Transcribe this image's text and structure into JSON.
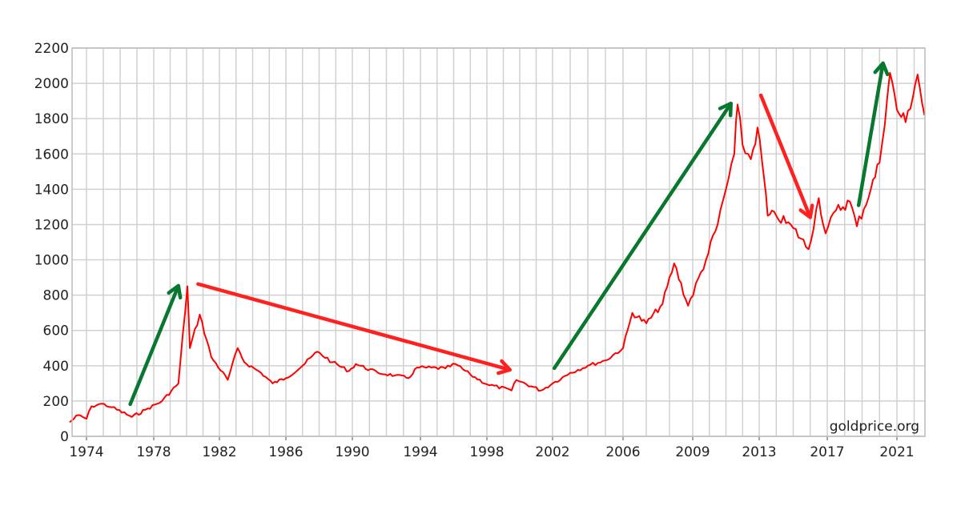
{
  "chart_data": {
    "type": "line",
    "title": "",
    "xlabel": "",
    "ylabel": "",
    "ylim": [
      0,
      2200
    ],
    "xlim": [
      1973,
      2022.6
    ],
    "grid": true,
    "y_ticks": [
      0,
      200,
      400,
      600,
      800,
      1000,
      1200,
      1400,
      1600,
      1800,
      2000,
      2200
    ],
    "x_ticks": [
      {
        "year": 1974,
        "label": "1974"
      },
      {
        "year": 1978,
        "label": "1978"
      },
      {
        "year": 1982,
        "label": "1982"
      },
      {
        "year": 1986,
        "label": "1986"
      },
      {
        "year": 1990,
        "label": "1990"
      },
      {
        "year": 1994,
        "label": "1994"
      },
      {
        "year": 1998,
        "label": "1998"
      },
      {
        "year": 2002,
        "label": "2002"
      },
      {
        "year": 2006,
        "label": "2006"
      },
      {
        "year": 2009,
        "label": "2009"
      },
      {
        "year": 2013,
        "label": "2013"
      },
      {
        "year": 2017,
        "label": "2017"
      },
      {
        "year": 2021,
        "label": "2021"
      }
    ],
    "watermark": "goldprice.org",
    "series_color": "#ff0000",
    "series": [
      {
        "x": [
          1973.0,
          1973.5,
          1974.0,
          1974.3,
          1974.9,
          1975.5,
          1976.7,
          1977.5,
          1978.5,
          1979.5,
          1980.05,
          1980.2,
          1980.8,
          1981.5,
          1982.5,
          1983.1,
          1983.5,
          1984.5,
          1985.2,
          1986.0,
          1987.0,
          1987.9,
          1988.8,
          1989.8,
          1990.2,
          1991.5,
          1992.5,
          1993.3,
          1993.8,
          1995.5,
          1996.1,
          1997.0,
          1998.0,
          1999.5,
          1999.8,
          2001.3,
          2002.0,
          2003.0,
          2004.0,
          2005.0,
          2006.0,
          2006.4,
          2007.0,
          2007.7,
          2008.2,
          2008.8,
          2009.8,
          2010.5,
          2011.0,
          2011.5,
          2011.7,
          2012.0,
          2012.5,
          2012.9,
          2013.3,
          2013.5,
          2014.0,
          2015.0,
          2015.9,
          2016.5,
          2016.9,
          2017.5,
          2018.3,
          2018.7,
          2019.5,
          2020.0,
          2020.6,
          2021.0,
          2021.5,
          2022.2,
          2022.6
        ],
        "y": [
          80,
          120,
          100,
          170,
          185,
          165,
          110,
          150,
          200,
          300,
          850,
          500,
          690,
          450,
          320,
          500,
          420,
          360,
          300,
          330,
          400,
          480,
          420,
          370,
          410,
          360,
          345,
          330,
          390,
          385,
          410,
          350,
          295,
          260,
          320,
          260,
          300,
          360,
          400,
          430,
          500,
          700,
          640,
          750,
          980,
          740,
          1000,
          1200,
          1400,
          1600,
          1880,
          1650,
          1570,
          1750,
          1450,
          1250,
          1250,
          1180,
          1060,
          1350,
          1150,
          1280,
          1330,
          1190,
          1400,
          1550,
          2060,
          1850,
          1780,
          2050,
          1820
        ]
      }
    ],
    "annotations": [
      {
        "type": "arrow",
        "color": "#087830",
        "from": [
          1976.6,
          182
        ],
        "to": [
          1979.5,
          853
        ]
      },
      {
        "type": "arrow",
        "color": "#ff2020",
        "from": [
          1980.7,
          863
        ],
        "to": [
          1999.4,
          377
        ]
      },
      {
        "type": "arrow",
        "color": "#087830",
        "from": [
          2002.1,
          386
        ],
        "to": [
          2011.3,
          1886
        ]
      },
      {
        "type": "arrow",
        "color": "#ff2020",
        "from": [
          2013.1,
          1932
        ],
        "to": [
          2016.0,
          1241
        ]
      },
      {
        "type": "arrow",
        "color": "#087830",
        "from": [
          2018.8,
          1309
        ],
        "to": [
          2020.2,
          2114
        ]
      }
    ]
  }
}
